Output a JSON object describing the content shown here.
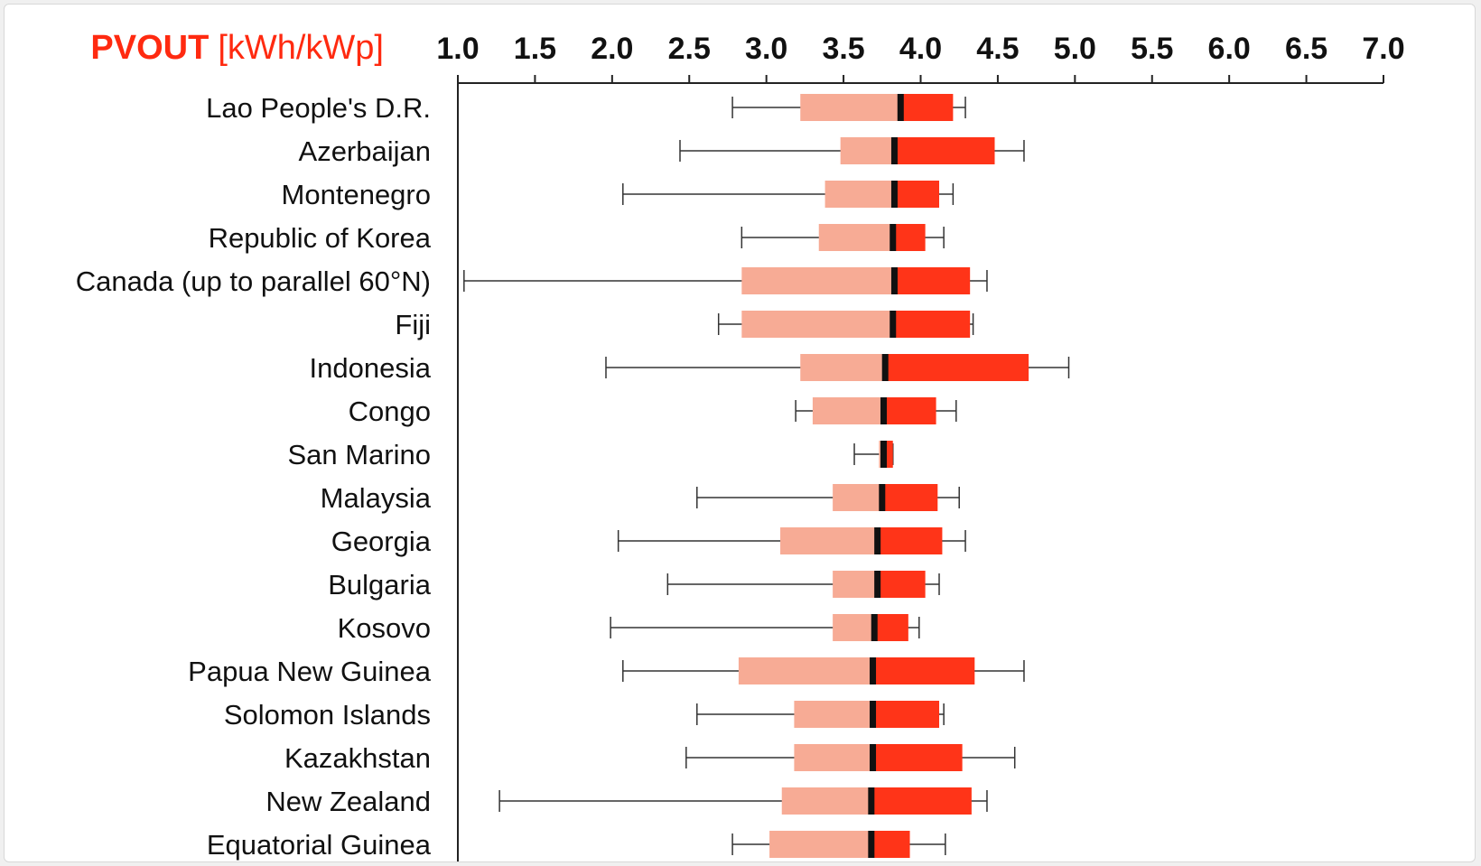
{
  "chart_data": {
    "type": "boxplot",
    "title": "PVOUT",
    "unit": "[kWh/kWp]",
    "xlim": [
      1.0,
      7.0
    ],
    "tick_labels": [
      "1.0",
      "1.5",
      "2.0",
      "2.5",
      "3.0",
      "3.5",
      "4.0",
      "4.5",
      "5.0",
      "5.5",
      "6.0",
      "6.5",
      "7.0"
    ],
    "categories": [
      "Lao People's D.R.",
      "Azerbaijan",
      "Montenegro",
      "Republic of Korea",
      "Canada (up to parallel 60°N)",
      "Fiji",
      "Indonesia",
      "Congo",
      "San Marino",
      "Malaysia",
      "Georgia",
      "Bulgaria",
      "Kosovo",
      "Papua New Guinea",
      "Solomon Islands",
      "Kazakhstan",
      "New Zealand",
      "Equatorial Guinea"
    ],
    "boxes": [
      {
        "min": 2.78,
        "q1": 3.22,
        "median": 3.87,
        "q3": 4.21,
        "max": 4.29
      },
      {
        "min": 2.44,
        "q1": 3.48,
        "median": 3.83,
        "q3": 4.48,
        "max": 4.67
      },
      {
        "min": 2.07,
        "q1": 3.38,
        "median": 3.83,
        "q3": 4.12,
        "max": 4.21
      },
      {
        "min": 2.84,
        "q1": 3.34,
        "median": 3.82,
        "q3": 4.03,
        "max": 4.15
      },
      {
        "min": 1.04,
        "q1": 2.84,
        "median": 3.83,
        "q3": 4.32,
        "max": 4.43
      },
      {
        "min": 2.69,
        "q1": 2.84,
        "median": 3.82,
        "q3": 4.32,
        "max": 4.34
      },
      {
        "min": 1.96,
        "q1": 3.22,
        "median": 3.77,
        "q3": 4.7,
        "max": 4.96
      },
      {
        "min": 3.19,
        "q1": 3.3,
        "median": 3.76,
        "q3": 4.1,
        "max": 4.23
      },
      {
        "min": 3.57,
        "q1": 3.73,
        "median": 3.76,
        "q3": 3.82,
        "max": 3.82
      },
      {
        "min": 2.55,
        "q1": 3.43,
        "median": 3.75,
        "q3": 4.11,
        "max": 4.25
      },
      {
        "min": 2.04,
        "q1": 3.09,
        "median": 3.72,
        "q3": 4.14,
        "max": 4.29
      },
      {
        "min": 2.36,
        "q1": 3.43,
        "median": 3.72,
        "q3": 4.03,
        "max": 4.12
      },
      {
        "min": 1.99,
        "q1": 3.43,
        "median": 3.7,
        "q3": 3.92,
        "max": 3.99
      },
      {
        "min": 2.07,
        "q1": 2.82,
        "median": 3.69,
        "q3": 4.35,
        "max": 4.67
      },
      {
        "min": 2.55,
        "q1": 3.18,
        "median": 3.69,
        "q3": 4.12,
        "max": 4.15
      },
      {
        "min": 2.48,
        "q1": 3.18,
        "median": 3.69,
        "q3": 4.27,
        "max": 4.61
      },
      {
        "min": 1.27,
        "q1": 3.1,
        "median": 3.68,
        "q3": 4.33,
        "max": 4.43
      },
      {
        "min": 2.78,
        "q1": 3.02,
        "median": 3.68,
        "q3": 3.93,
        "max": 4.16
      }
    ],
    "colors": {
      "lower_box": "#f7ab95",
      "upper_box": "#ff3418",
      "median": "#111111",
      "whisker": "#333333",
      "axis": "#222222",
      "title": "#ff2a10"
    },
    "grid": false
  }
}
